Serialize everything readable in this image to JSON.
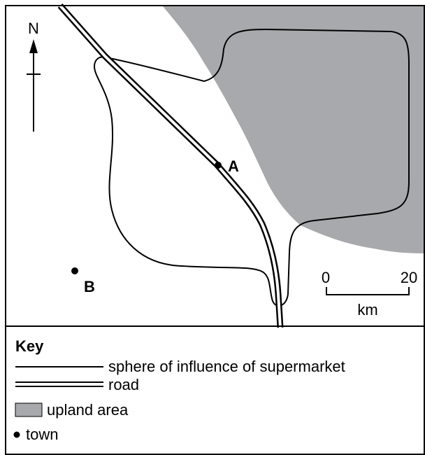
{
  "map": {
    "north": "N",
    "towns": [
      {
        "label": "A"
      },
      {
        "label": "B"
      }
    ],
    "scale": {
      "start": "0",
      "end": "20",
      "unit": "km"
    },
    "key": {
      "title": "Key",
      "items": [
        "sphere of influence of supermarket",
        "road",
        "upland area",
        "town"
      ]
    }
  }
}
